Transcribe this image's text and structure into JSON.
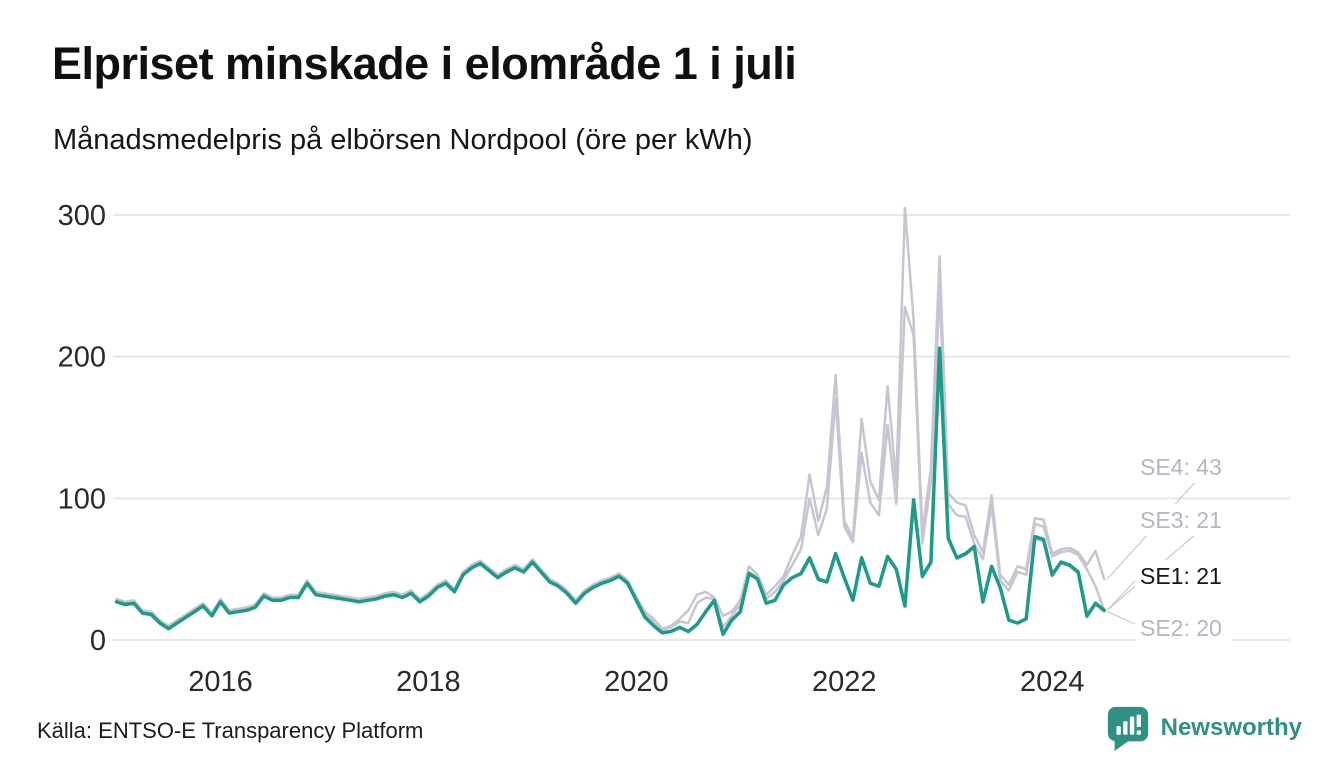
{
  "title": "Elpriset minskade i elområde 1 i juli",
  "subtitle": "Månadsmedelpris på elbörsen Nordpool (öre per kWh)",
  "source": "Källa: ENTSO-E Transparency Platform",
  "brand": {
    "name": "Newsworthy",
    "color": "#2f9184",
    "icon": "bar-chart-speech-bubble-icon"
  },
  "colors": {
    "highlight_line": "#1d9b89",
    "muted_line": "#c6c5d0",
    "muted_label": "#b7b5c1",
    "highlight_label": "#161616",
    "gridline": "#e7e7ea",
    "axis_text": "#2a2a2e",
    "background": "#ffffff"
  },
  "chart_data": {
    "type": "line",
    "unit": "öre per kWh",
    "x_start": "2015-01",
    "x_end": "2024-07",
    "months": 115,
    "grid": "horizontal",
    "legend_position": "end-of-line-labels",
    "y_ticks": [
      0,
      100,
      200,
      300
    ],
    "ylim": [
      0,
      310
    ],
    "x_ticks": [
      {
        "label": "2016",
        "month_index": 12
      },
      {
        "label": "2018",
        "month_index": 36
      },
      {
        "label": "2020",
        "month_index": 60
      },
      {
        "label": "2022",
        "month_index": 84
      },
      {
        "label": "2024",
        "month_index": 108
      }
    ],
    "series": [
      {
        "name": "SE4",
        "end_label": "SE4: 43",
        "end_value": 43,
        "color": "#c6c5d0",
        "label_color": "#b7b5c1",
        "values": [
          29,
          27,
          28,
          21,
          20,
          14,
          10,
          14,
          18,
          22,
          26,
          19,
          29,
          21,
          22,
          23,
          25,
          33,
          30,
          30,
          32,
          32,
          42,
          34,
          33,
          32,
          31,
          30,
          29,
          30,
          31,
          33,
          34,
          32,
          35,
          29,
          33,
          39,
          42,
          36,
          48,
          53,
          56,
          51,
          46,
          50,
          53,
          50,
          57,
          50,
          43,
          40,
          35,
          28,
          35,
          39,
          42,
          44,
          47,
          42,
          30,
          20,
          15,
          8,
          10,
          15,
          21,
          32,
          34,
          30,
          17,
          20,
          28,
          52,
          46,
          32,
          38,
          45,
          60,
          73,
          117,
          84,
          108,
          187,
          84,
          72,
          156,
          112,
          99,
          179,
          111,
          305,
          226,
          76,
          121,
          271,
          104,
          97,
          95,
          74,
          62,
          102,
          46,
          39,
          52,
          50,
          86,
          85,
          61,
          64,
          65,
          62,
          53,
          63,
          43
        ]
      },
      {
        "name": "SE3",
        "end_label": "SE3: 21",
        "end_value": 21,
        "color": "#c6c5d0",
        "label_color": "#b7b5c1",
        "values": [
          28,
          26,
          27,
          20,
          19,
          13,
          9,
          13,
          17,
          21,
          25,
          18,
          28,
          20,
          21,
          22,
          24,
          32,
          29,
          29,
          31,
          31,
          41,
          33,
          32,
          31,
          30,
          29,
          28,
          29,
          30,
          32,
          33,
          31,
          34,
          28,
          32,
          38,
          41,
          35,
          47,
          52,
          55,
          50,
          45,
          49,
          52,
          49,
          56,
          49,
          42,
          39,
          34,
          27,
          34,
          38,
          41,
          43,
          46,
          41,
          29,
          18,
          13,
          7,
          9,
          13,
          12,
          26,
          30,
          29,
          9,
          17,
          25,
          48,
          44,
          29,
          34,
          42,
          53,
          64,
          100,
          74,
          93,
          170,
          80,
          69,
          132,
          97,
          88,
          152,
          96,
          235,
          215,
          68,
          112,
          246,
          96,
          88,
          87,
          68,
          57,
          95,
          42,
          35,
          48,
          46,
          82,
          80,
          59,
          62,
          63,
          60,
          50,
          38,
          21
        ]
      },
      {
        "name": "SE2",
        "end_label": "SE2: 20",
        "end_value": 20,
        "color": "#c6c5d0",
        "label_color": "#b7b5c1",
        "values": [
          27,
          25,
          26,
          19,
          18,
          12,
          8,
          12,
          16,
          20,
          24,
          17,
          27,
          19,
          20,
          21,
          23,
          31,
          28,
          28,
          30,
          30,
          40,
          32,
          31,
          30,
          29,
          28,
          27,
          28,
          29,
          31,
          32,
          30,
          33,
          27,
          31,
          37,
          40,
          34,
          46,
          51,
          54,
          49,
          44,
          48,
          51,
          48,
          55,
          48,
          41,
          38,
          33,
          26,
          33,
          37,
          40,
          42,
          45,
          40,
          28,
          16,
          10,
          5,
          6,
          9,
          6,
          11,
          20,
          28,
          4,
          14,
          20,
          46,
          43,
          26,
          28,
          39,
          44,
          46,
          57,
          42,
          41,
          60,
          43,
          28,
          57,
          40,
          38,
          58,
          49,
          24,
          97,
          44,
          54,
          203,
          71,
          57,
          60,
          65,
          26,
          51,
          36,
          14,
          12,
          15,
          71,
          70,
          45,
          54,
          52,
          47,
          16,
          25,
          20
        ]
      },
      {
        "name": "SE1",
        "end_label": "SE1: 21",
        "end_value": 21,
        "color": "#1d9b89",
        "label_color": "#161616",
        "values": [
          27,
          25,
          26,
          19,
          18,
          12,
          8,
          12,
          16,
          20,
          24,
          17,
          27,
          19,
          20,
          21,
          23,
          31,
          28,
          28,
          30,
          30,
          40,
          32,
          31,
          30,
          29,
          28,
          27,
          28,
          29,
          31,
          32,
          30,
          33,
          27,
          31,
          37,
          40,
          34,
          46,
          51,
          54,
          49,
          44,
          48,
          51,
          48,
          55,
          48,
          41,
          38,
          33,
          26,
          33,
          37,
          40,
          42,
          45,
          40,
          28,
          16,
          10,
          5,
          6,
          9,
          6,
          11,
          20,
          28,
          4,
          14,
          20,
          47,
          43,
          26,
          28,
          39,
          44,
          47,
          58,
          43,
          41,
          61,
          44,
          28,
          58,
          40,
          38,
          59,
          50,
          24,
          99,
          45,
          55,
          206,
          72,
          58,
          61,
          66,
          27,
          52,
          37,
          14,
          12,
          15,
          73,
          71,
          46,
          55,
          53,
          48,
          17,
          26,
          21
        ]
      }
    ]
  }
}
